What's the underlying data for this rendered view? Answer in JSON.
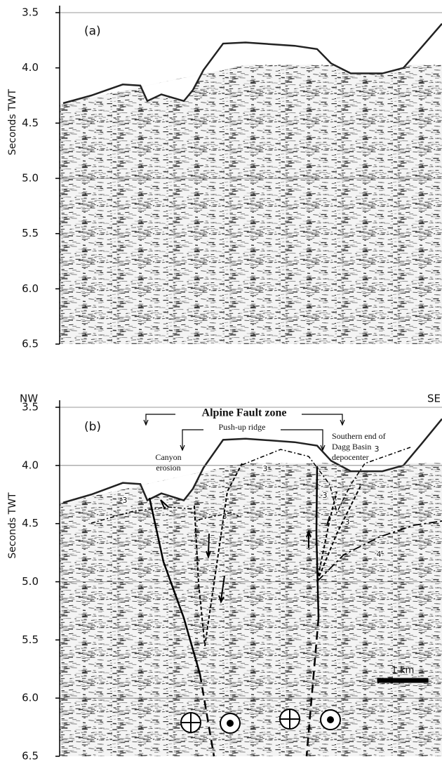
{
  "figure": {
    "y_axis_label": "Seconds TWT",
    "ylim": [
      3.5,
      6.5
    ],
    "yticks": [
      3.5,
      {
        "value": 4,
        "label": "4.0"
      },
      4.5,
      {
        "value": 5,
        "label": "5.0"
      },
      5.5,
      {
        "value": 6,
        "label": "6.0"
      },
      6.5
    ],
    "panels": [
      {
        "label": "(a)",
        "grid_lines": [
          3.5,
          5
        ]
      },
      {
        "label": "(b)",
        "grid_lines": [
          3.5,
          4,
          5,
          6
        ],
        "left_direction": "NW",
        "right_direction": "SE",
        "title": "Alpine Fault zone",
        "annotations": [
          [
            "Push-up ridge"
          ],
          [
            "Canyon",
            "erosion"
          ],
          [
            "Southern end of",
            "Dagg Basin",
            "depocenter"
          ]
        ],
        "horizon_labels": [
          "3",
          "3",
          "3",
          "3",
          "3",
          "3",
          "4"
        ],
        "scale_bar": "1 km"
      }
    ]
  }
}
